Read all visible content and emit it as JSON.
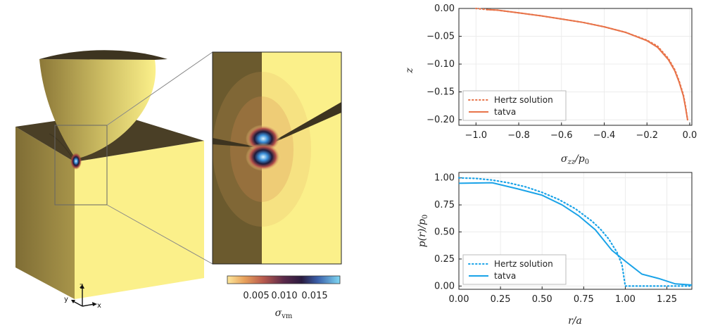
{
  "colors": {
    "hertz_top": "#e8744a",
    "tatva_top": "#e8744a",
    "hertz_bottom": "#1aa3e8",
    "tatva_bottom": "#1aa3e8",
    "solid_face_light": "#fbf08a",
    "solid_face_dark": "#6b5a2e"
  },
  "figure": {
    "axes_triad": {
      "z": "z",
      "y": "y",
      "x": "x"
    },
    "colorbar": {
      "ticks": [
        "0.005",
        "0.010",
        "0.015"
      ],
      "label": "σ",
      "label_sub": "vm",
      "colormap": "lapaz-like"
    }
  },
  "chart_data": [
    {
      "type": "line",
      "xlabel_main": "σ",
      "xlabel_sub": "zz",
      "xlabel_rest": "/p",
      "xlabel_sub2": "0",
      "ylabel": "z",
      "xlim": [
        -1.08,
        0.01
      ],
      "ylim": [
        -0.21,
        0.0
      ],
      "xticks": [
        -1.0,
        -0.8,
        -0.6,
        -0.4,
        -0.2,
        0.0
      ],
      "xtick_labels": [
        "−1.0",
        "−0.8",
        "−0.6",
        "−0.4",
        "−0.2",
        "0.0"
      ],
      "yticks": [
        0.0,
        -0.05,
        -0.1,
        -0.15,
        -0.2
      ],
      "ytick_labels": [
        "0.00",
        "−0.05",
        "−0.10",
        "−0.15",
        "−0.20"
      ],
      "grid": true,
      "legend_position": "bottom-left",
      "series": [
        {
          "name": "Hertz solution",
          "style": "dotted",
          "x": [
            -1.0,
            -0.95,
            -0.9,
            -0.8,
            -0.7,
            -0.6,
            -0.5,
            -0.4,
            -0.3,
            -0.2,
            -0.15,
            -0.1,
            -0.07,
            -0.05,
            -0.03,
            -0.02,
            -0.01
          ],
          "y": [
            0.0,
            -0.002,
            -0.003,
            -0.008,
            -0.013,
            -0.019,
            -0.025,
            -0.033,
            -0.043,
            -0.057,
            -0.068,
            -0.09,
            -0.11,
            -0.13,
            -0.155,
            -0.175,
            -0.2
          ]
        },
        {
          "name": "tatva",
          "style": "solid",
          "x": [
            -0.95,
            -0.9,
            -0.8,
            -0.7,
            -0.6,
            -0.5,
            -0.4,
            -0.3,
            -0.2,
            -0.15,
            -0.1,
            -0.07,
            -0.05,
            -0.03,
            -0.02,
            -0.01
          ],
          "y": [
            -0.002,
            -0.003,
            -0.008,
            -0.013,
            -0.019,
            -0.025,
            -0.033,
            -0.043,
            -0.058,
            -0.07,
            -0.092,
            -0.112,
            -0.132,
            -0.157,
            -0.177,
            -0.2
          ]
        }
      ]
    },
    {
      "type": "line",
      "xlabel_main": "r/a",
      "ylabel_main": "p(r)/p",
      "ylabel_sub": "0",
      "xlim": [
        0.0,
        1.4
      ],
      "ylim": [
        -0.03,
        1.05
      ],
      "xticks": [
        0.0,
        0.25,
        0.5,
        0.75,
        1.0,
        1.25
      ],
      "xtick_labels": [
        "0.00",
        "0.25",
        "0.50",
        "0.75",
        "1.00",
        "1.25"
      ],
      "yticks": [
        0.0,
        0.25,
        0.5,
        0.75,
        1.0
      ],
      "ytick_labels": [
        "0.00",
        "0.25",
        "0.50",
        "0.75",
        "1.00"
      ],
      "grid": true,
      "legend_position": "bottom-left",
      "series": [
        {
          "name": "Hertz solution",
          "style": "dotted",
          "x": [
            0.0,
            0.1,
            0.2,
            0.3,
            0.4,
            0.5,
            0.6,
            0.7,
            0.8,
            0.85,
            0.9,
            0.95,
            0.98,
            1.0,
            1.05,
            1.2,
            1.4
          ],
          "y": [
            1.0,
            0.995,
            0.98,
            0.954,
            0.917,
            0.866,
            0.8,
            0.714,
            0.6,
            0.527,
            0.436,
            0.312,
            0.199,
            0.0,
            0.0,
            0.0,
            0.0
          ]
        },
        {
          "name": "tatva",
          "style": "solid",
          "x": [
            0.0,
            0.2,
            0.35,
            0.5,
            0.62,
            0.72,
            0.82,
            0.92,
            1.0,
            1.1,
            1.2,
            1.3,
            1.4
          ],
          "y": [
            0.95,
            0.955,
            0.9,
            0.84,
            0.75,
            0.65,
            0.52,
            0.33,
            0.23,
            0.11,
            0.07,
            0.02,
            0.01
          ]
        }
      ]
    }
  ]
}
